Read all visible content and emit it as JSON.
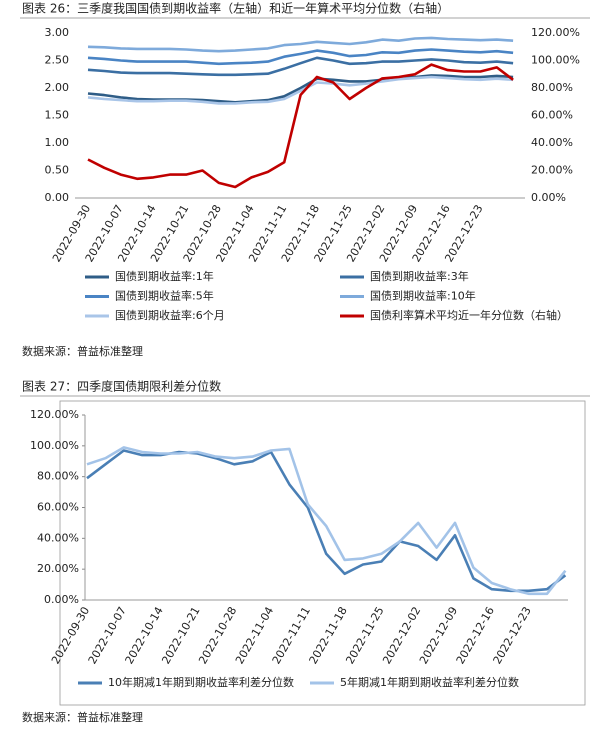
{
  "chart_data": [
    {
      "type": "line",
      "title": "图表 26：三季度我国国债到期收益率（左轴）和近一年算术平均分位数（右轴）",
      "source": "数据来源：普益标准整理",
      "categories": [
        "2022-09-30",
        null,
        "2022-10-07",
        null,
        "2022-10-14",
        null,
        "2022-10-21",
        null,
        "2022-10-28",
        null,
        "2022-11-04",
        null,
        "2022-11-11",
        null,
        "2022-11-18",
        null,
        "2022-11-25",
        null,
        "2022-12-02",
        null,
        "2022-12-09",
        null,
        "2022-12-16",
        null,
        "2022-12-23",
        null,
        null
      ],
      "ylim": [
        0,
        3
      ],
      "yticks": [
        {
          "value": 0,
          "label": "0.00"
        },
        {
          "value": 0.5,
          "label": "0.50"
        },
        {
          "value": 1,
          "label": "1.00"
        },
        {
          "value": 1.5,
          "label": "1.50"
        },
        {
          "value": 2,
          "label": "2.00"
        },
        {
          "value": 2.5,
          "label": "2.50"
        },
        {
          "value": 3,
          "label": "3.00"
        }
      ],
      "y2lim": [
        0,
        120
      ],
      "y2ticks": [
        {
          "value": 0,
          "label": "0.00%"
        },
        {
          "value": 20,
          "label": "20.00%"
        },
        {
          "value": 40,
          "label": "40.00%"
        },
        {
          "value": 60,
          "label": "60.00%"
        },
        {
          "value": 80,
          "label": "80.00%"
        },
        {
          "value": 100,
          "label": "100.00%"
        },
        {
          "value": 120,
          "label": "120.00%"
        }
      ],
      "series": [
        {
          "name": "国债到期收益率:1年",
          "color": "#2f5d87",
          "values": [
            1.9,
            1.87,
            1.83,
            1.8,
            1.79,
            1.79,
            1.79,
            1.78,
            1.76,
            1.74,
            1.76,
            1.78,
            1.85,
            2.0,
            2.17,
            2.15,
            2.12,
            2.12,
            2.15,
            2.18,
            2.2,
            2.23,
            2.22,
            2.2,
            2.2,
            2.22,
            2.2
          ]
        },
        {
          "name": "国债到期收益率:3年",
          "color": "#3b6fa3",
          "values": [
            2.33,
            2.31,
            2.28,
            2.27,
            2.27,
            2.27,
            2.26,
            2.25,
            2.24,
            2.24,
            2.25,
            2.26,
            2.35,
            2.45,
            2.55,
            2.5,
            2.44,
            2.45,
            2.48,
            2.48,
            2.5,
            2.52,
            2.5,
            2.47,
            2.46,
            2.48,
            2.45
          ]
        },
        {
          "name": "国债到期收益率:5年",
          "color": "#4a84c4",
          "values": [
            2.55,
            2.53,
            2.5,
            2.48,
            2.48,
            2.48,
            2.48,
            2.46,
            2.44,
            2.45,
            2.46,
            2.48,
            2.57,
            2.62,
            2.68,
            2.64,
            2.58,
            2.6,
            2.65,
            2.64,
            2.68,
            2.7,
            2.68,
            2.66,
            2.65,
            2.67,
            2.64
          ]
        },
        {
          "name": "国债到期收益率:10年",
          "color": "#7eaadb",
          "values": [
            2.75,
            2.74,
            2.72,
            2.71,
            2.71,
            2.71,
            2.7,
            2.68,
            2.67,
            2.68,
            2.7,
            2.72,
            2.78,
            2.8,
            2.84,
            2.82,
            2.8,
            2.83,
            2.88,
            2.86,
            2.9,
            2.91,
            2.89,
            2.88,
            2.87,
            2.88,
            2.86
          ]
        },
        {
          "name": "国债到期收益率:6个月",
          "color": "#a9c5e8",
          "values": [
            1.83,
            1.8,
            1.78,
            1.76,
            1.76,
            1.77,
            1.77,
            1.75,
            1.72,
            1.72,
            1.74,
            1.75,
            1.8,
            1.95,
            2.1,
            2.08,
            2.05,
            2.08,
            2.12,
            2.16,
            2.18,
            2.2,
            2.18,
            2.16,
            2.15,
            2.17,
            2.15
          ]
        },
        {
          "name": "国债利率算术平均近一年分位数（右轴）",
          "color": "#c00000",
          "axis": "y2",
          "values": [
            28,
            22,
            17,
            14,
            15,
            17,
            17,
            20,
            11,
            8,
            15,
            19,
            26,
            75,
            88,
            84,
            72,
            80,
            87,
            88,
            90,
            97,
            93,
            92,
            92,
            95,
            86
          ]
        }
      ]
    },
    {
      "type": "line",
      "title": "图表 27：四季度国债期限利差分位数",
      "source": "数据来源：普益标准整理",
      "categories": [
        "2022-09-30",
        null,
        "2022-10-07",
        null,
        "2022-10-14",
        null,
        "2022-10-21",
        null,
        "2022-10-28",
        null,
        "2022-11-04",
        null,
        "2022-11-11",
        null,
        "2022-11-18",
        null,
        "2022-11-25",
        null,
        "2022-12-02",
        null,
        "2022-12-09",
        null,
        "2022-12-16",
        null,
        "2022-12-23",
        null,
        null
      ],
      "ylim": [
        0,
        120
      ],
      "yticks": [
        {
          "value": 0,
          "label": "0.00%"
        },
        {
          "value": 20,
          "label": "20.00%"
        },
        {
          "value": 40,
          "label": "40.00%"
        },
        {
          "value": 60,
          "label": "60.00%"
        },
        {
          "value": 80,
          "label": "80.00%"
        },
        {
          "value": 100,
          "label": "100.00%"
        },
        {
          "value": 120,
          "label": "120.00%"
        }
      ],
      "series": [
        {
          "name": "10年期减1年期到期收益率利差分位数",
          "color": "#4a7fb5",
          "values": [
            79,
            88,
            97,
            94,
            94,
            96,
            95,
            92,
            88,
            90,
            96,
            75,
            60,
            30,
            17,
            23,
            25,
            38,
            35,
            26,
            42,
            14,
            7,
            6,
            6,
            7,
            16
          ]
        },
        {
          "name": "5年期减1年期到期收益率利差分位数",
          "color": "#a3c3e8",
          "values": [
            88,
            92,
            99,
            96,
            95,
            95,
            96,
            93,
            92,
            93,
            97,
            98,
            62,
            48,
            26,
            27,
            30,
            38,
            50,
            34,
            50,
            21,
            11,
            7,
            4,
            4,
            19
          ]
        }
      ]
    }
  ]
}
